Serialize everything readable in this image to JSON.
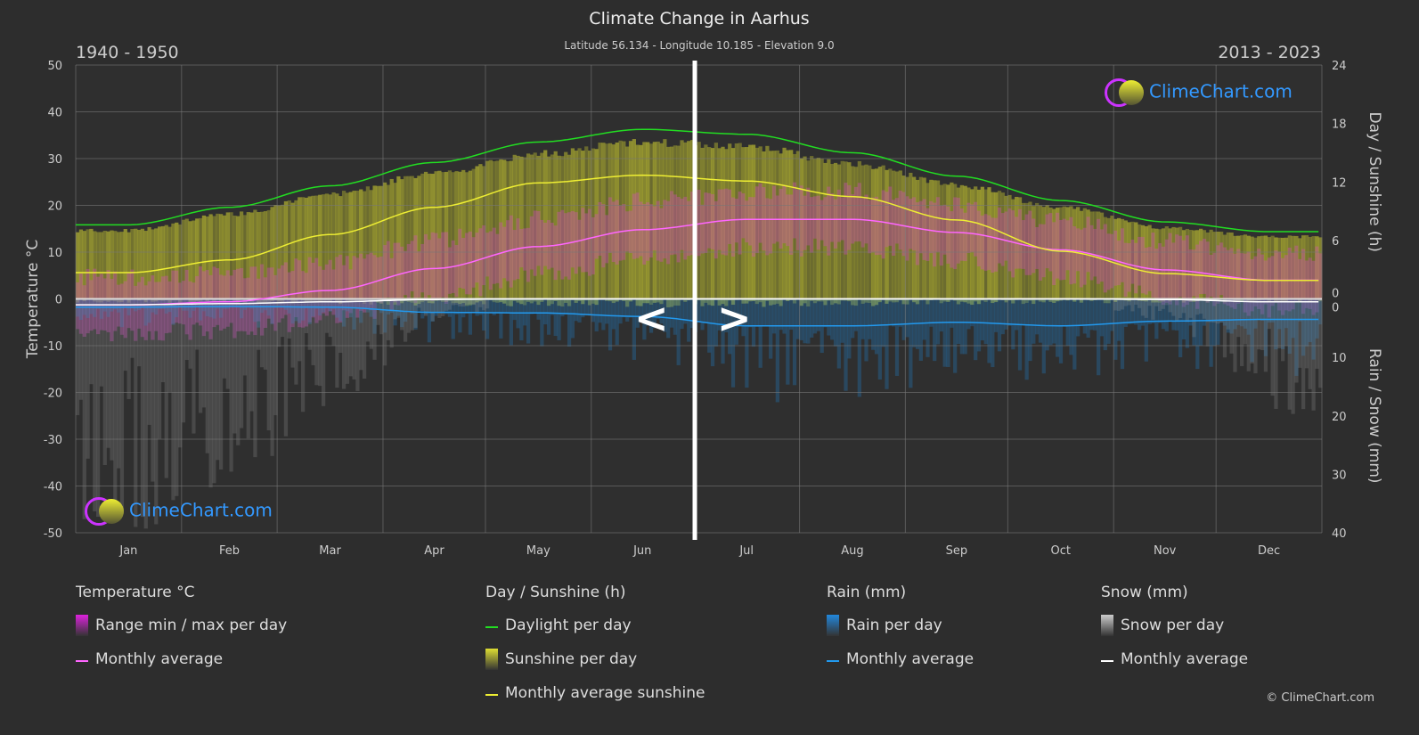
{
  "header": {
    "title": "Climate Change in Aarhus",
    "subtitle": "Latitude 56.134 - Longitude 10.185 - Elevation 9.0",
    "period_left": "1940 - 1950",
    "period_right": "2013 - 2023"
  },
  "brand": {
    "logo_text": "ClimeChart.com",
    "copyright": "© ClimeChart.com"
  },
  "nav": {
    "prev": "<",
    "next": ">"
  },
  "chart_data": {
    "type": "line",
    "categories": [
      "Jan",
      "Feb",
      "Mar",
      "Apr",
      "May",
      "Jun",
      "Jul",
      "Aug",
      "Sep",
      "Oct",
      "Nov",
      "Dec"
    ],
    "left_axis": {
      "label": "Temperature °C",
      "range": [
        -50,
        50
      ],
      "ticks": [
        "50",
        "40",
        "30",
        "20",
        "10",
        "0",
        "-10",
        "-20",
        "-30",
        "-40",
        "-50"
      ]
    },
    "right_axis_top": {
      "label": "Day / Sunshine (h)",
      "range": [
        0,
        24
      ],
      "ticks": [
        "24",
        "18",
        "12",
        "6",
        "0"
      ]
    },
    "right_axis_bottom": {
      "label": "Rain / Snow (mm)",
      "range": [
        0,
        40
      ],
      "ticks": [
        "0",
        "10",
        "20",
        "30",
        "40"
      ]
    },
    "grid": true,
    "series": [
      {
        "name": "Temperature Monthly average",
        "axis": "temp",
        "color": "#ff66ff",
        "values": [
          -1.3,
          -0.6,
          1.8,
          6.5,
          11.2,
          14.8,
          17.0,
          17.0,
          14.2,
          10.5,
          6.2,
          4.0
        ]
      },
      {
        "name": "Daylight per day",
        "axis": "sun",
        "color": "#22dd22",
        "values": [
          7.6,
          9.4,
          11.6,
          14.0,
          16.1,
          17.4,
          16.9,
          15.0,
          12.6,
          10.1,
          7.9,
          6.9
        ]
      },
      {
        "name": "Monthly average sunshine",
        "axis": "sun",
        "color": "#eeee33",
        "values": [
          2.7,
          4.0,
          6.6,
          9.4,
          11.9,
          12.7,
          12.1,
          10.5,
          8.1,
          4.9,
          2.6,
          1.9
        ]
      },
      {
        "name": "Rain Monthly average",
        "axis": "rain",
        "color": "#2299ee",
        "values": [
          1.4,
          1.3,
          1.4,
          2.3,
          2.4,
          3.0,
          4.6,
          4.6,
          4.0,
          4.6,
          3.8,
          3.5
        ]
      },
      {
        "name": "Snow Monthly average",
        "axis": "rain",
        "color": "#ffffff",
        "values": [
          1.0,
          0.8,
          0.5,
          0.1,
          0,
          0,
          0,
          0,
          0,
          0,
          0.1,
          0.5
        ]
      }
    ]
  },
  "legend": {
    "groups": [
      {
        "title": "Temperature °C",
        "items": [
          {
            "label": "Range min / max per day",
            "kind": "swatch",
            "color": "#dd22dd"
          },
          {
            "label": "Monthly average",
            "kind": "line",
            "color": "#ff66ff"
          }
        ]
      },
      {
        "title": "Day / Sunshine (h)",
        "items": [
          {
            "label": "Daylight per day",
            "kind": "line",
            "color": "#22dd22"
          },
          {
            "label": "Sunshine per day",
            "kind": "swatch",
            "color": "#dddd33"
          },
          {
            "label": "Monthly average sunshine",
            "kind": "line",
            "color": "#eeee33"
          }
        ]
      },
      {
        "title": "Rain (mm)",
        "items": [
          {
            "label": "Rain per day",
            "kind": "swatch",
            "color": "#2288dd"
          },
          {
            "label": "Monthly average",
            "kind": "line",
            "color": "#2299ee"
          }
        ]
      },
      {
        "title": "Snow (mm)",
        "items": [
          {
            "label": "Snow per day",
            "kind": "swatch",
            "color": "#cccccc"
          },
          {
            "label": "Monthly average",
            "kind": "line",
            "color": "#ffffff"
          }
        ]
      }
    ]
  }
}
